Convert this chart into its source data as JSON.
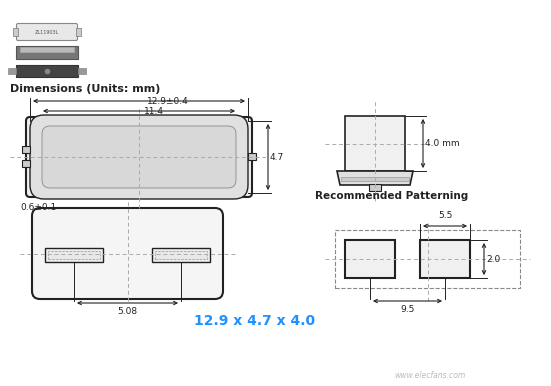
{
  "bg_color": "#ffffff",
  "title_text": "Dimensions (Units: mm)",
  "dim_label_129": "12.9±0.4",
  "dim_label_114": "11.4",
  "dim_label_47": "4.7",
  "dim_label_06": "0.6±0.1",
  "dim_label_4mm": "4.0 mm",
  "dim_label_508": "5.08",
  "dim_label_size": "12.9 x 4.7 x 4.0",
  "size_color": "#1e90ff",
  "rec_pattern_title": "Recommended Patterning",
  "dim_label_55": "5.5",
  "dim_label_20": "2.0",
  "dim_label_95": "9.5",
  "line_color": "#222222",
  "watermark": "www.elecfans.com",
  "comp_label": "ZL11903L"
}
